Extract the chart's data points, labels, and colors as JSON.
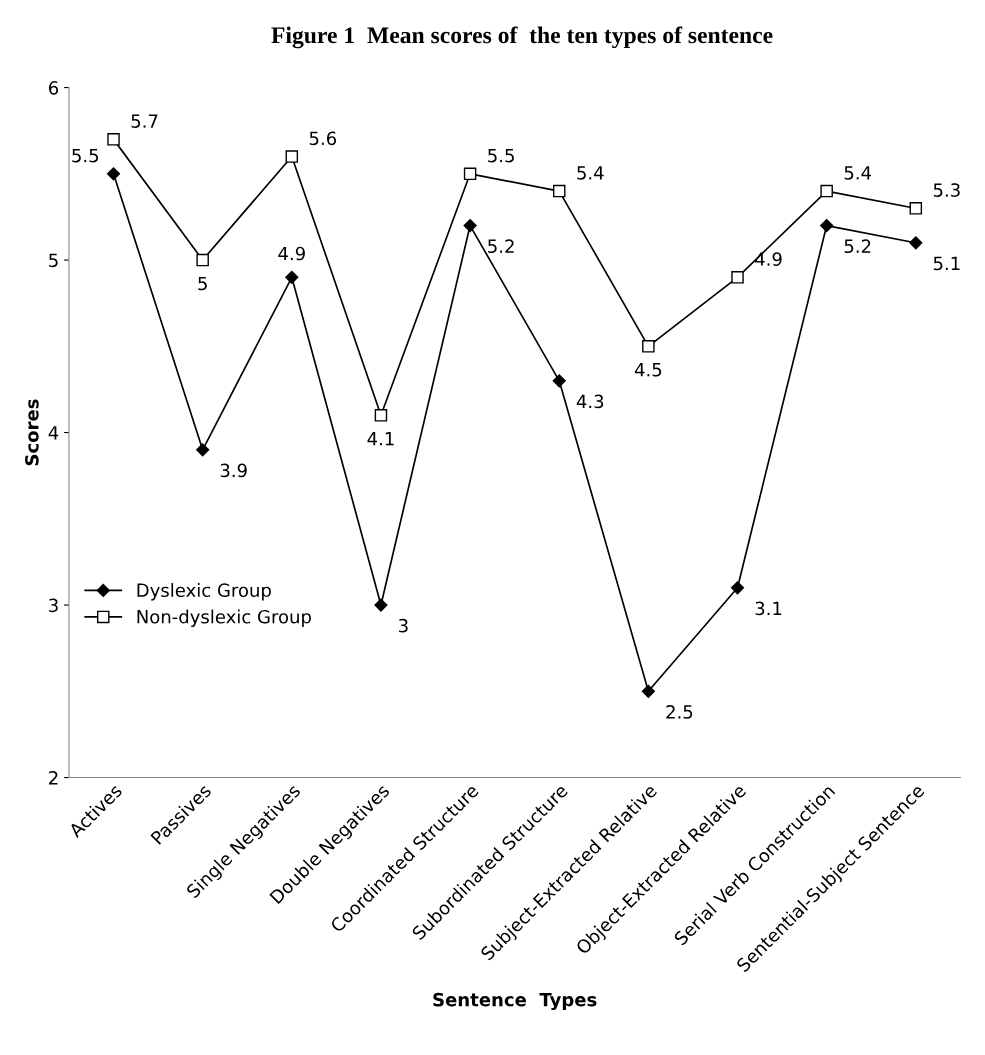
{
  "chart_data": {
    "type": "line",
    "title": "Figure 1  Mean scores of  the ten types of sentence",
    "xlabel": "Sentence  Types",
    "ylabel": "Scores",
    "categories": [
      "Actives",
      "Passives",
      "Single Negatives",
      "Double Negatives",
      "Coordinated Structure",
      "Subordinated Structure",
      "Subject-Extracted Relative",
      "Object-Extracted Relative",
      "Serial Verb Construction",
      "Sentential-Subject Sentence"
    ],
    "series": [
      {
        "name": "Dyslexic Group",
        "color": "#000000",
        "marker": "diamond",
        "values": [
          5.5,
          3.9,
          4.9,
          3,
          5.2,
          4.3,
          2.5,
          3.1,
          5.2,
          5.1
        ]
      },
      {
        "name": "Non-dyslexic Group",
        "color": "#000000",
        "marker": "square",
        "values": [
          5.7,
          5,
          5.6,
          4.1,
          5.5,
          5.4,
          4.5,
          4.9,
          5.4,
          5.3
        ]
      }
    ],
    "ylim": [
      2,
      6
    ],
    "yticks": [
      2,
      3,
      4,
      5,
      6
    ],
    "grid": false,
    "legend": "left",
    "data_labels": true,
    "line_style": "solid"
  }
}
